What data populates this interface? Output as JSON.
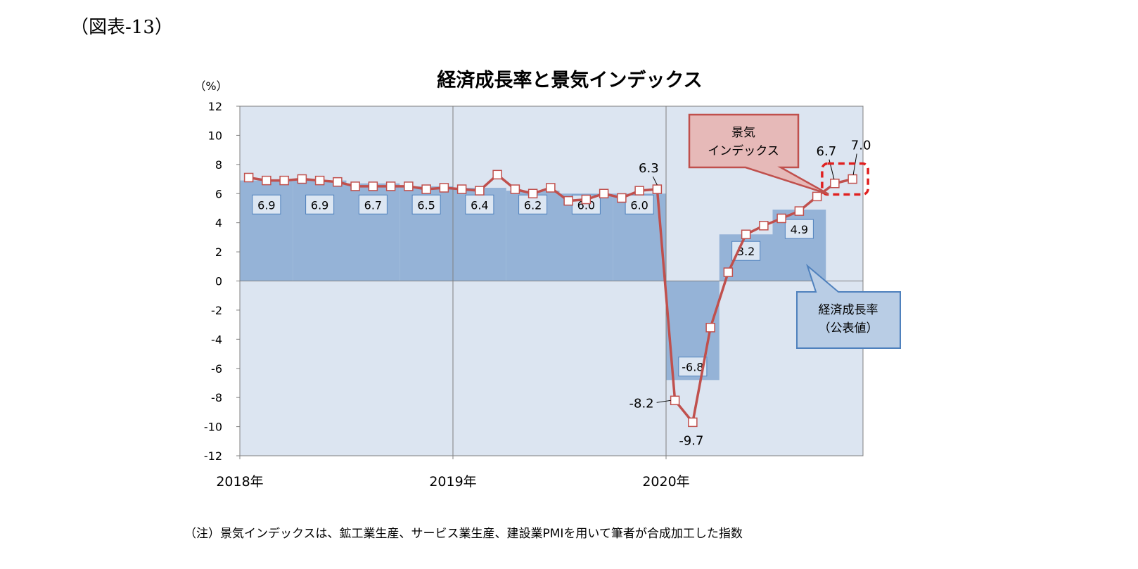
{
  "figure_label": "（図表-13）",
  "note": "（注）景気インデックスは、鉱工業生産、サービス業生産、建設業PMIを用いて筆者が合成加工した指数",
  "colors": {
    "plot_bg": "#dce5f1",
    "bar": "#95b3d7",
    "line": "#c0504d",
    "marker_fill": "#ffffff",
    "gridline": "#808080",
    "gdp_label_bg": "#dce6f2",
    "gdp_label_border": "#4f81bd",
    "callout_red_bg": "#e6b9b8",
    "callout_blue_bg": "#b9cde5"
  },
  "chart_data": {
    "type": "bar+line",
    "title": "経済成長率と景気インデックス",
    "y_unit": "（%）",
    "ylim": [
      -12,
      12
    ],
    "y_ticks": [
      "12",
      "10",
      "8",
      "6",
      "4",
      "2",
      "0",
      "-2",
      "-4",
      "-6",
      "-8",
      "-10",
      "-12"
    ],
    "x_labels": [
      "2018年",
      "2019年",
      "2020年"
    ],
    "grid": "vertical lines at year starts",
    "series": [
      {
        "name": "経済成長率（公表値）",
        "kind": "bar",
        "periods": [
          "2018Q1",
          "2018Q2",
          "2018Q3",
          "2018Q4",
          "2019Q1",
          "2019Q2",
          "2019Q3",
          "2019Q4",
          "2020Q1",
          "2020Q2",
          "2020Q3"
        ],
        "values": [
          6.9,
          6.9,
          6.7,
          6.5,
          6.4,
          6.2,
          6.0,
          6.0,
          -6.8,
          3.2,
          4.9
        ],
        "labels": [
          "6.9",
          "6.9",
          "6.7",
          "6.5",
          "6.4",
          "6.2",
          "6.0",
          "6.0",
          "-6.8",
          "3.2",
          "4.9"
        ]
      },
      {
        "name": "景気インデックス",
        "kind": "line",
        "start": "2018-01",
        "values": [
          7.1,
          6.9,
          6.9,
          7.0,
          6.9,
          6.8,
          6.5,
          6.5,
          6.5,
          6.5,
          6.3,
          6.4,
          6.3,
          6.2,
          7.3,
          6.3,
          6.0,
          6.4,
          5.5,
          5.6,
          6.0,
          5.7,
          6.2,
          6.3,
          -8.2,
          -9.7,
          -3.2,
          0.6,
          3.2,
          3.8,
          4.3,
          4.8,
          5.8,
          6.7,
          7.0
        ],
        "point_labels": [
          {
            "index": 23,
            "text": "6.3"
          },
          {
            "index": 24,
            "text": "-8.2"
          },
          {
            "index": 25,
            "text": "-9.7"
          },
          {
            "index": 33,
            "text": "6.7"
          },
          {
            "index": 34,
            "text": "7.0"
          }
        ]
      }
    ],
    "annotations": [
      {
        "text_lines": [
          "景気",
          "インデックス"
        ],
        "style": "callout-red"
      },
      {
        "text_lines": [
          "経済成長率",
          "（公表値）"
        ],
        "style": "callout-blue"
      }
    ]
  }
}
